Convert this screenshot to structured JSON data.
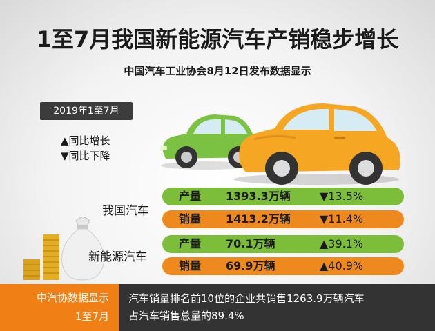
{
  "header": {
    "title": "1至7月我国新能源汽车产销稳步增长",
    "subtitle": "中国汽车工业协会8月12日发布数据显示"
  },
  "period_tag": "2019年1至7月",
  "legend": {
    "up": "▲同比增长",
    "down": "▼同比下降"
  },
  "groups": [
    {
      "label": "我国汽车",
      "rows": [
        {
          "metric": "产量",
          "value": "1393.3万辆",
          "change": "▼13.5%"
        },
        {
          "metric": "销量",
          "value": "1413.2万辆",
          "change": "▼11.4%"
        }
      ]
    },
    {
      "label": "新能源汽车",
      "rows": [
        {
          "metric": "产量",
          "value": "70.1万辆",
          "change": "▲39.1%"
        },
        {
          "metric": "销量",
          "value": "69.9万辆",
          "change": "▲40.9%"
        }
      ]
    }
  ],
  "footer": {
    "source_line1": "中汽协数据显示",
    "source_line2": "1至7月",
    "text_line1": "汽车销量排名前10位的企业共销售1263.9万辆汽车",
    "text_line2": "占汽车销售总量的89.4%"
  },
  "colors": {
    "green_bar": "#7cbd3a",
    "orange_bar": "#ee8a1d",
    "footer_orange": "#f07f16",
    "footer_dark": "#333333",
    "car_green": "#7cc242",
    "car_orange": "#f5a623"
  },
  "icons": [
    "green-car-icon",
    "orange-car-icon",
    "money-bag-icon",
    "coin-stack-icon"
  ]
}
